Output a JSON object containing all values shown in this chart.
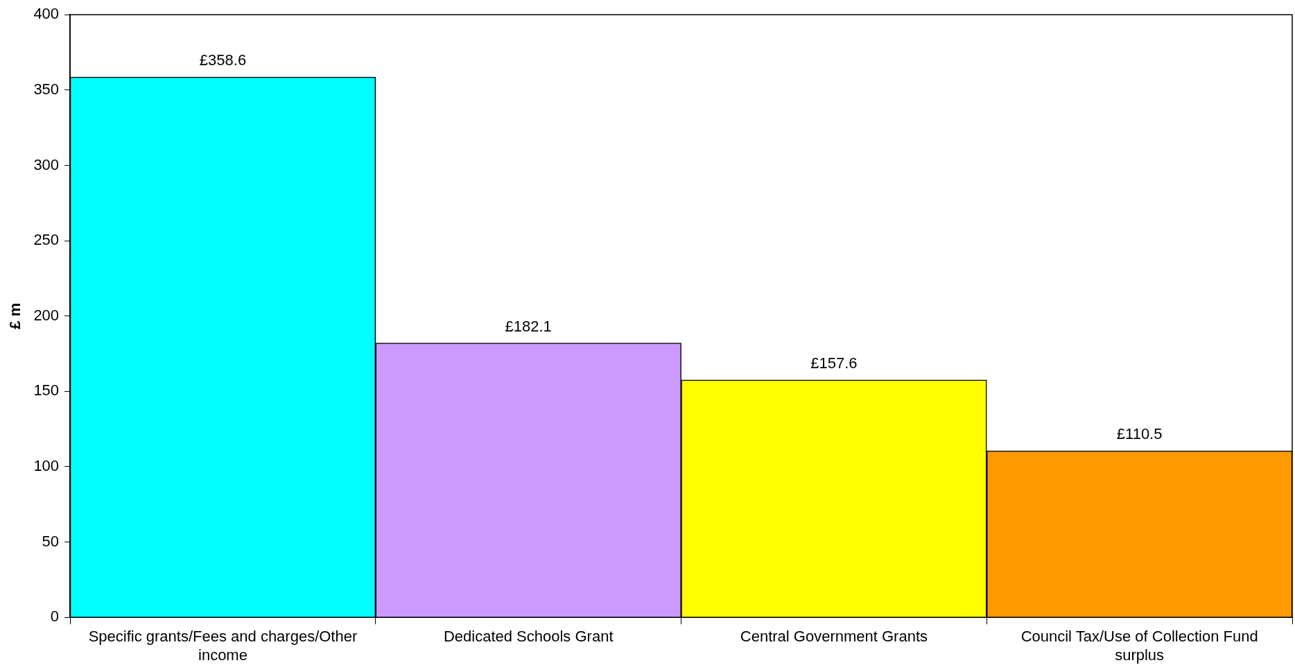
{
  "chart_data": {
    "type": "bar",
    "ylabel": "£ m",
    "categories": [
      "Specific grants/Fees and charges/Other income",
      "Dedicated Schools Grant",
      "Central Government Grants",
      "Council Tax/Use of Collection Fund surplus"
    ],
    "values": [
      358.6,
      182.1,
      157.6,
      110.5
    ],
    "colors": [
      "#00ffff",
      "#cc99ff",
      "#ffff00",
      "#ff9900"
    ],
    "value_labels": [
      "£358.6",
      "£182.1",
      "£157.6",
      "£110.5"
    ],
    "ylim": [
      0,
      400
    ],
    "yticks": [
      0,
      50,
      100,
      150,
      200,
      250,
      300,
      350,
      400
    ],
    "grid": false,
    "legend": false
  }
}
